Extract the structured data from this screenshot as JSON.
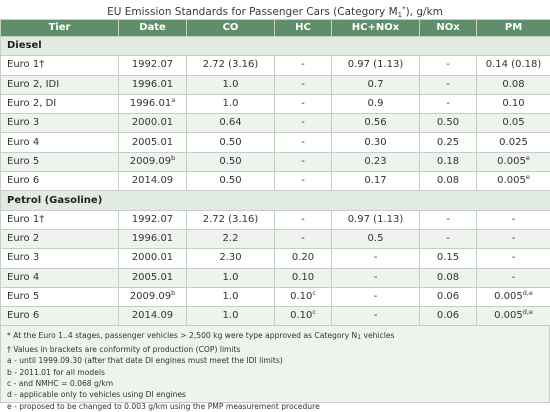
{
  "title": {
    "prefix": "EU Emission Standards for Passenger Cars (Category M",
    "sub": "1",
    "sup": "*",
    "suffix": "), g/km"
  },
  "columns": [
    "Tier",
    "Date",
    "CO",
    "HC",
    "HC+NOx",
    "NOx",
    "PM"
  ],
  "sections": [
    {
      "name": "Diesel",
      "rows": [
        {
          "tier": "Euro 1†",
          "date": "1992.07",
          "date_mark": "",
          "co": "2.72 (3.16)",
          "hc": "-",
          "hc_mark": "",
          "hcnox": "0.97 (1.13)",
          "nox": "-",
          "pm": "0.14 (0.18)",
          "pm_mark": ""
        },
        {
          "tier": "Euro 2, IDI",
          "date": "1996.01",
          "date_mark": "",
          "co": "1.0",
          "hc": "-",
          "hc_mark": "",
          "hcnox": "0.7",
          "nox": "-",
          "pm": "0.08",
          "pm_mark": ""
        },
        {
          "tier": "Euro 2, DI",
          "date": "1996.01",
          "date_mark": "a",
          "co": "1.0",
          "hc": "-",
          "hc_mark": "",
          "hcnox": "0.9",
          "nox": "-",
          "pm": "0.10",
          "pm_mark": ""
        },
        {
          "tier": "Euro 3",
          "date": "2000.01",
          "date_mark": "",
          "co": "0.64",
          "hc": "-",
          "hc_mark": "",
          "hcnox": "0.56",
          "nox": "0.50",
          "pm": "0.05",
          "pm_mark": ""
        },
        {
          "tier": "Euro 4",
          "date": "2005.01",
          "date_mark": "",
          "co": "0.50",
          "hc": "-",
          "hc_mark": "",
          "hcnox": "0.30",
          "nox": "0.25",
          "pm": "0.025",
          "pm_mark": ""
        },
        {
          "tier": "Euro 5",
          "date": "2009.09",
          "date_mark": "b",
          "co": "0.50",
          "hc": "-",
          "hc_mark": "",
          "hcnox": "0.23",
          "nox": "0.18",
          "pm": "0.005",
          "pm_mark": "e"
        },
        {
          "tier": "Euro 6",
          "date": "2014.09",
          "date_mark": "",
          "co": "0.50",
          "hc": "-",
          "hc_mark": "",
          "hcnox": "0.17",
          "nox": "0.08",
          "pm": "0.005",
          "pm_mark": "e"
        }
      ]
    },
    {
      "name": "Petrol (Gasoline)",
      "rows": [
        {
          "tier": "Euro 1†",
          "date": "1992.07",
          "date_mark": "",
          "co": "2.72 (3.16)",
          "hc": "-",
          "hc_mark": "",
          "hcnox": "0.97 (1.13)",
          "nox": "-",
          "pm": "-",
          "pm_mark": ""
        },
        {
          "tier": "Euro 2",
          "date": "1996.01",
          "date_mark": "",
          "co": "2.2",
          "hc": "-",
          "hc_mark": "",
          "hcnox": "0.5",
          "nox": "-",
          "pm": "-",
          "pm_mark": ""
        },
        {
          "tier": "Euro 3",
          "date": "2000.01",
          "date_mark": "",
          "co": "2.30",
          "hc": "0.20",
          "hc_mark": "",
          "hcnox": "-",
          "nox": "0.15",
          "pm": "-",
          "pm_mark": ""
        },
        {
          "tier": "Euro 4",
          "date": "2005.01",
          "date_mark": "",
          "co": "1.0",
          "hc": "0.10",
          "hc_mark": "",
          "hcnox": "-",
          "nox": "0.08",
          "pm": "-",
          "pm_mark": ""
        },
        {
          "tier": "Euro 5",
          "date": "2009.09",
          "date_mark": "b",
          "co": "1.0",
          "hc": "0.10",
          "hc_mark": "c",
          "hcnox": "-",
          "nox": "0.06",
          "pm": "0.005",
          "pm_mark": "d,e"
        },
        {
          "tier": "Euro 6",
          "date": "2014.09",
          "date_mark": "",
          "co": "1.0",
          "hc": "0.10",
          "hc_mark": "c",
          "hcnox": "-",
          "nox": "0.06",
          "pm": "0.005",
          "pm_mark": "d,e"
        }
      ]
    }
  ],
  "notes": {
    "star_prefix": "* At the Euro 1..4 stages, passenger vehicles > 2,500 kg were type approved as Category N",
    "star_sub": "1",
    "star_suffix": " vehicles",
    "lines": [
      "† Values in brackets are conformity of production (COP) limits",
      "a - until 1999.09.30 (after that date DI engines must meet the IDI limits)",
      "b - 2011.01 for all models",
      "c - and NMHC = 0.068 g/km",
      "d - applicable only to vehicles using DI engines",
      "e - proposed to be changed to 0.003 g/km using the PMP measurement procedure"
    ]
  },
  "colors": {
    "header_bg": "#5f8f6a",
    "header_text": "#ffffff",
    "alt_row": "#eef3ee",
    "section_row": "#e2ebe2",
    "border": "#c4cfc4"
  }
}
